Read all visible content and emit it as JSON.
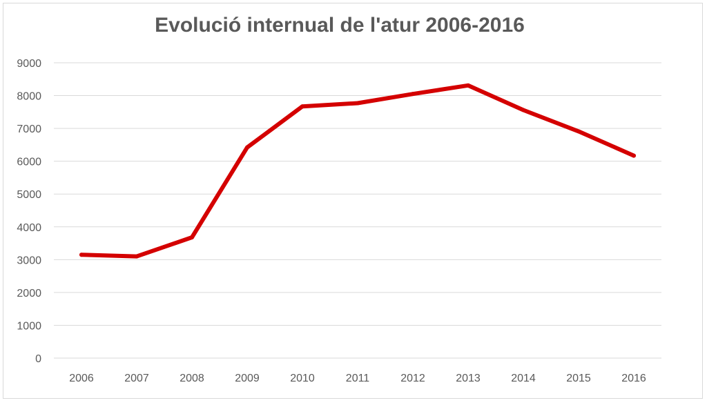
{
  "chart_data": {
    "type": "line",
    "title": "Evolució internual de l'atur 2006-2016",
    "xlabel": "",
    "ylabel": "",
    "categories": [
      "2006",
      "2007",
      "2008",
      "2009",
      "2010",
      "2011",
      "2012",
      "2013",
      "2014",
      "2015",
      "2016"
    ],
    "series": [
      {
        "values": [
          3150,
          3100,
          3680,
          6420,
          7670,
          7770,
          8050,
          8310,
          7560,
          6910,
          6170
        ]
      }
    ],
    "ylim": [
      0,
      9000
    ],
    "yticks": [
      "0",
      "1000",
      "2000",
      "3000",
      "4000",
      "5000",
      "6000",
      "7000",
      "8000",
      "9000"
    ],
    "grid": true,
    "legend": "none",
    "line_color": "#d40000",
    "grid_color": "#d9d9d9",
    "text_color": "#595959"
  }
}
